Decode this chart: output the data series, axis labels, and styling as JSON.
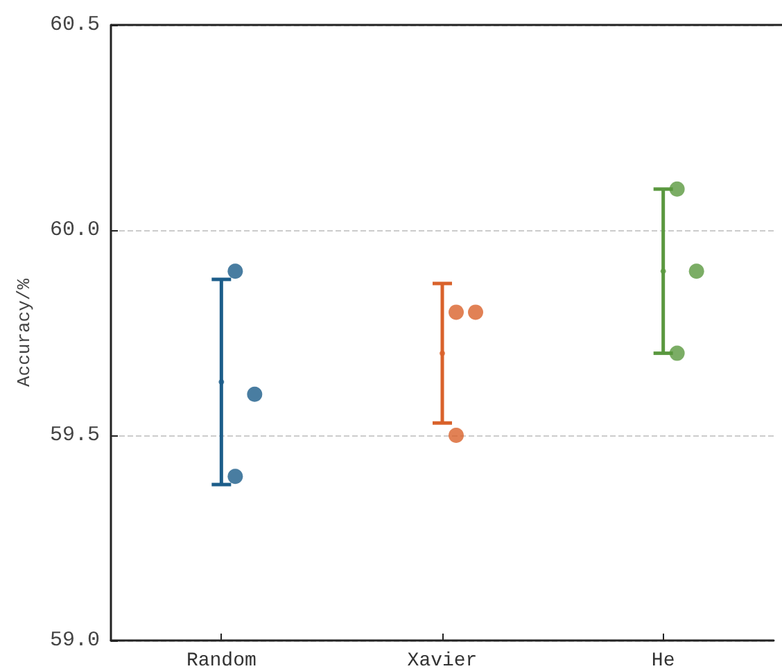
{
  "chart_data": {
    "type": "scatter",
    "ylabel": "Accuracy/%",
    "categories": [
      "Random",
      "Xavier",
      "He"
    ],
    "ylim": [
      59,
      60.5
    ],
    "yticks": [
      {
        "value": 59,
        "label": "59.0"
      },
      {
        "value": 59.5,
        "label": "59.5"
      },
      {
        "value": 60,
        "label": "60.0"
      },
      {
        "value": 60.5,
        "label": "60.5"
      }
    ],
    "grid": "y",
    "marker": "circle",
    "series": [
      {
        "color": "#1c5d8a",
        "x": [
          "Random"
        ],
        "values": [
          59.63
        ],
        "errors": [
          0.25
        ]
      },
      {
        "color": "#d9622b",
        "x": [
          "Xavier"
        ],
        "values": [
          59.7
        ],
        "errors": [
          0.17
        ]
      },
      {
        "color": "#5a983f",
        "x": [
          "He"
        ],
        "values": [
          59.9
        ],
        "errors": [
          0.2
        ]
      },
      {
        "color": "#1c5d8a",
        "x": [
          "Random",
          "Random",
          "Random"
        ],
        "values": [
          59.9,
          59.6,
          59.4
        ]
      },
      {
        "color": "#d9622b",
        "x": [
          "Xavier",
          "Xavier",
          "Xavier"
        ],
        "values": [
          59.8,
          59.8,
          59.5
        ]
      },
      {
        "color": "#5a983f",
        "x": [
          "He",
          "He",
          "He"
        ],
        "values": [
          60.1,
          59.9,
          59.7
        ]
      }
    ]
  }
}
